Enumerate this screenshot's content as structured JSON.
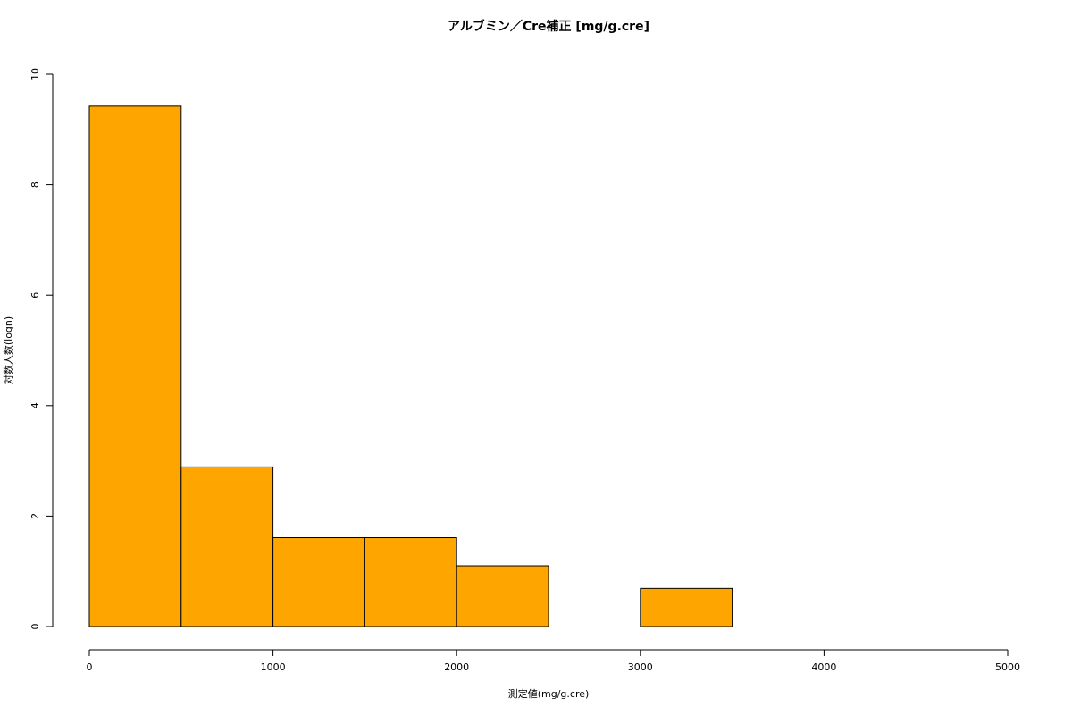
{
  "chart_data": {
    "type": "histogram",
    "title": "アルブミン／Cre補正 [mg/g.cre]",
    "x_label": "測定値(mg/g.cre)",
    "y_label": "対数人数(logn)",
    "bins": [
      0,
      500,
      1000,
      1500,
      2000,
      2500,
      3000,
      3500
    ],
    "counts": [
      9.42,
      2.89,
      1.61,
      1.61,
      1.1,
      0,
      0.69
    ],
    "color": "#ffa500",
    "xlim": [
      0,
      5000
    ],
    "xticks": [
      0,
      1000,
      2000,
      3000,
      4000,
      5000
    ],
    "ylim": [
      0,
      10
    ],
    "yticks": [
      0,
      2,
      4,
      6,
      8,
      10
    ]
  }
}
